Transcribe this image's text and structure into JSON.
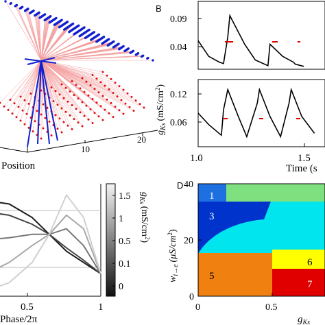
{
  "panels": {
    "A": {
      "xlabel": "Position",
      "ticks": [
        "10",
        "20"
      ]
    },
    "B": {
      "label": "B",
      "ylabel_base": "g",
      "ylabel_sub": "Ks",
      "ylabel_unit": "(mS/cm",
      "ylabel_sup": "2",
      "ylabel_close": ")",
      "top_yticks": [
        "0.09",
        "0.04"
      ],
      "bottom_yticks": [
        "0.12",
        "0.06"
      ],
      "xticks": [
        "1.0",
        "1.5"
      ],
      "xlabel": "Time (s"
    },
    "C": {
      "xlabel": "Phase/2π",
      "xticks": [
        "0.5",
        "1"
      ],
      "colorbar_ticks": [
        "1.5",
        "1",
        "0.5",
        "0.1",
        "0"
      ],
      "colorbar_label_base": "g",
      "colorbar_label_sub": "Ks",
      "colorbar_label_unit": "(mS/cm",
      "colorbar_label_sup": "2",
      "colorbar_label_close": ")"
    },
    "D": {
      "label": "D",
      "yticks": [
        "40",
        "20",
        "0"
      ],
      "xticks": [
        "0",
        "0.5",
        "1"
      ],
      "ylabel_w": "w",
      "ylabel_sub": "i→e",
      "ylabel_unit": "(μS/cm",
      "ylabel_sup": "2",
      "ylabel_close": ")",
      "xlabel_base": "g",
      "xlabel_sub": "Ks",
      "regions": [
        "1",
        "2",
        "3",
        "4",
        "5",
        "6",
        "7"
      ],
      "colors": {
        "r1": "#1e6fe0",
        "r2": "#7fe07f",
        "r3": "#0033cc",
        "r4": "#00e5ee",
        "r5": "#f08010",
        "r6": "#ffff00",
        "r7": "#e00000"
      }
    }
  },
  "chart_data": [
    {
      "type": "scatter",
      "panel": "A",
      "xlabel": "Position",
      "x_ticks": [
        10,
        20
      ]
    },
    {
      "type": "line",
      "panel": "B-top",
      "xlabel": "Time (s",
      "ylabel": "gKs (mS/cm2)",
      "x_ticks": [
        1.0,
        1.5
      ],
      "y_ticks": [
        0.04,
        0.09
      ],
      "xlim": [
        1.0,
        1.6
      ],
      "ylim": [
        0.015,
        0.11
      ],
      "x": [
        1.0,
        1.05,
        1.1,
        1.12,
        1.14,
        1.15,
        1.22,
        1.27,
        1.33,
        1.34,
        1.4,
        1.45,
        1.46,
        1.5
      ],
      "y": [
        0.055,
        0.033,
        0.025,
        0.023,
        0.06,
        0.09,
        0.05,
        0.028,
        0.02,
        0.05,
        0.033,
        0.025,
        0.022,
        0.019
      ]
    },
    {
      "type": "line",
      "panel": "B-bottom",
      "x_ticks": [
        1.0,
        1.5
      ],
      "y_ticks": [
        0.06,
        0.12
      ],
      "xlim": [
        1.0,
        1.6
      ],
      "ylim": [
        0.035,
        0.135
      ],
      "x": [
        1.0,
        1.05,
        1.11,
        1.12,
        1.14,
        1.19,
        1.23,
        1.28,
        1.29,
        1.34,
        1.39,
        1.43,
        1.44,
        1.49,
        1.55
      ],
      "y": [
        0.085,
        0.068,
        0.052,
        0.09,
        0.12,
        0.08,
        0.05,
        0.1,
        0.12,
        0.08,
        0.05,
        0.1,
        0.12,
        0.08,
        0.055
      ]
    },
    {
      "type": "line",
      "panel": "C",
      "xlabel": "Phase/2π",
      "x_ticks": [
        0.5,
        1
      ],
      "series": [
        {
          "gks": 0,
          "x": [
            0,
            0.2,
            0.4,
            0.55,
            0.7,
            0.85,
            1.0
          ],
          "y": [
            0.85,
            0.82,
            0.7,
            0.55,
            0.4,
            0.3,
            0.2
          ]
        },
        {
          "gks": 0.1,
          "x": [
            0,
            0.2,
            0.4,
            0.55,
            0.7,
            0.85,
            1.0
          ],
          "y": [
            0.75,
            0.72,
            0.64,
            0.55,
            0.43,
            0.32,
            0.2
          ]
        },
        {
          "gks": 0.5,
          "x": [
            0,
            0.2,
            0.4,
            0.55,
            0.7,
            0.85,
            1.0
          ],
          "y": [
            0.5,
            0.52,
            0.55,
            0.55,
            0.6,
            0.45,
            0.2
          ]
        },
        {
          "gks": 1,
          "x": [
            0,
            0.2,
            0.4,
            0.55,
            0.7,
            0.85,
            1.0
          ],
          "y": [
            0.2,
            0.3,
            0.45,
            0.55,
            0.72,
            0.6,
            0.2
          ]
        },
        {
          "gks": 1.5,
          "x": [
            0,
            0.2,
            0.4,
            0.55,
            0.7,
            0.85,
            1.0
          ],
          "y": [
            0.05,
            0.12,
            0.3,
            0.55,
            0.9,
            0.7,
            0.2
          ]
        }
      ]
    },
    {
      "type": "heatmap",
      "panel": "D",
      "xlabel": "gKs",
      "ylabel": "w i→e (μS/cm2)",
      "x_ticks": [
        0,
        0.5,
        1
      ],
      "y_ticks": [
        0,
        20,
        40
      ],
      "xlim": [
        0,
        1
      ],
      "ylim": [
        0,
        40
      ],
      "regions": [
        "1",
        "2",
        "3",
        "4",
        "5",
        "6",
        "7"
      ]
    }
  ]
}
